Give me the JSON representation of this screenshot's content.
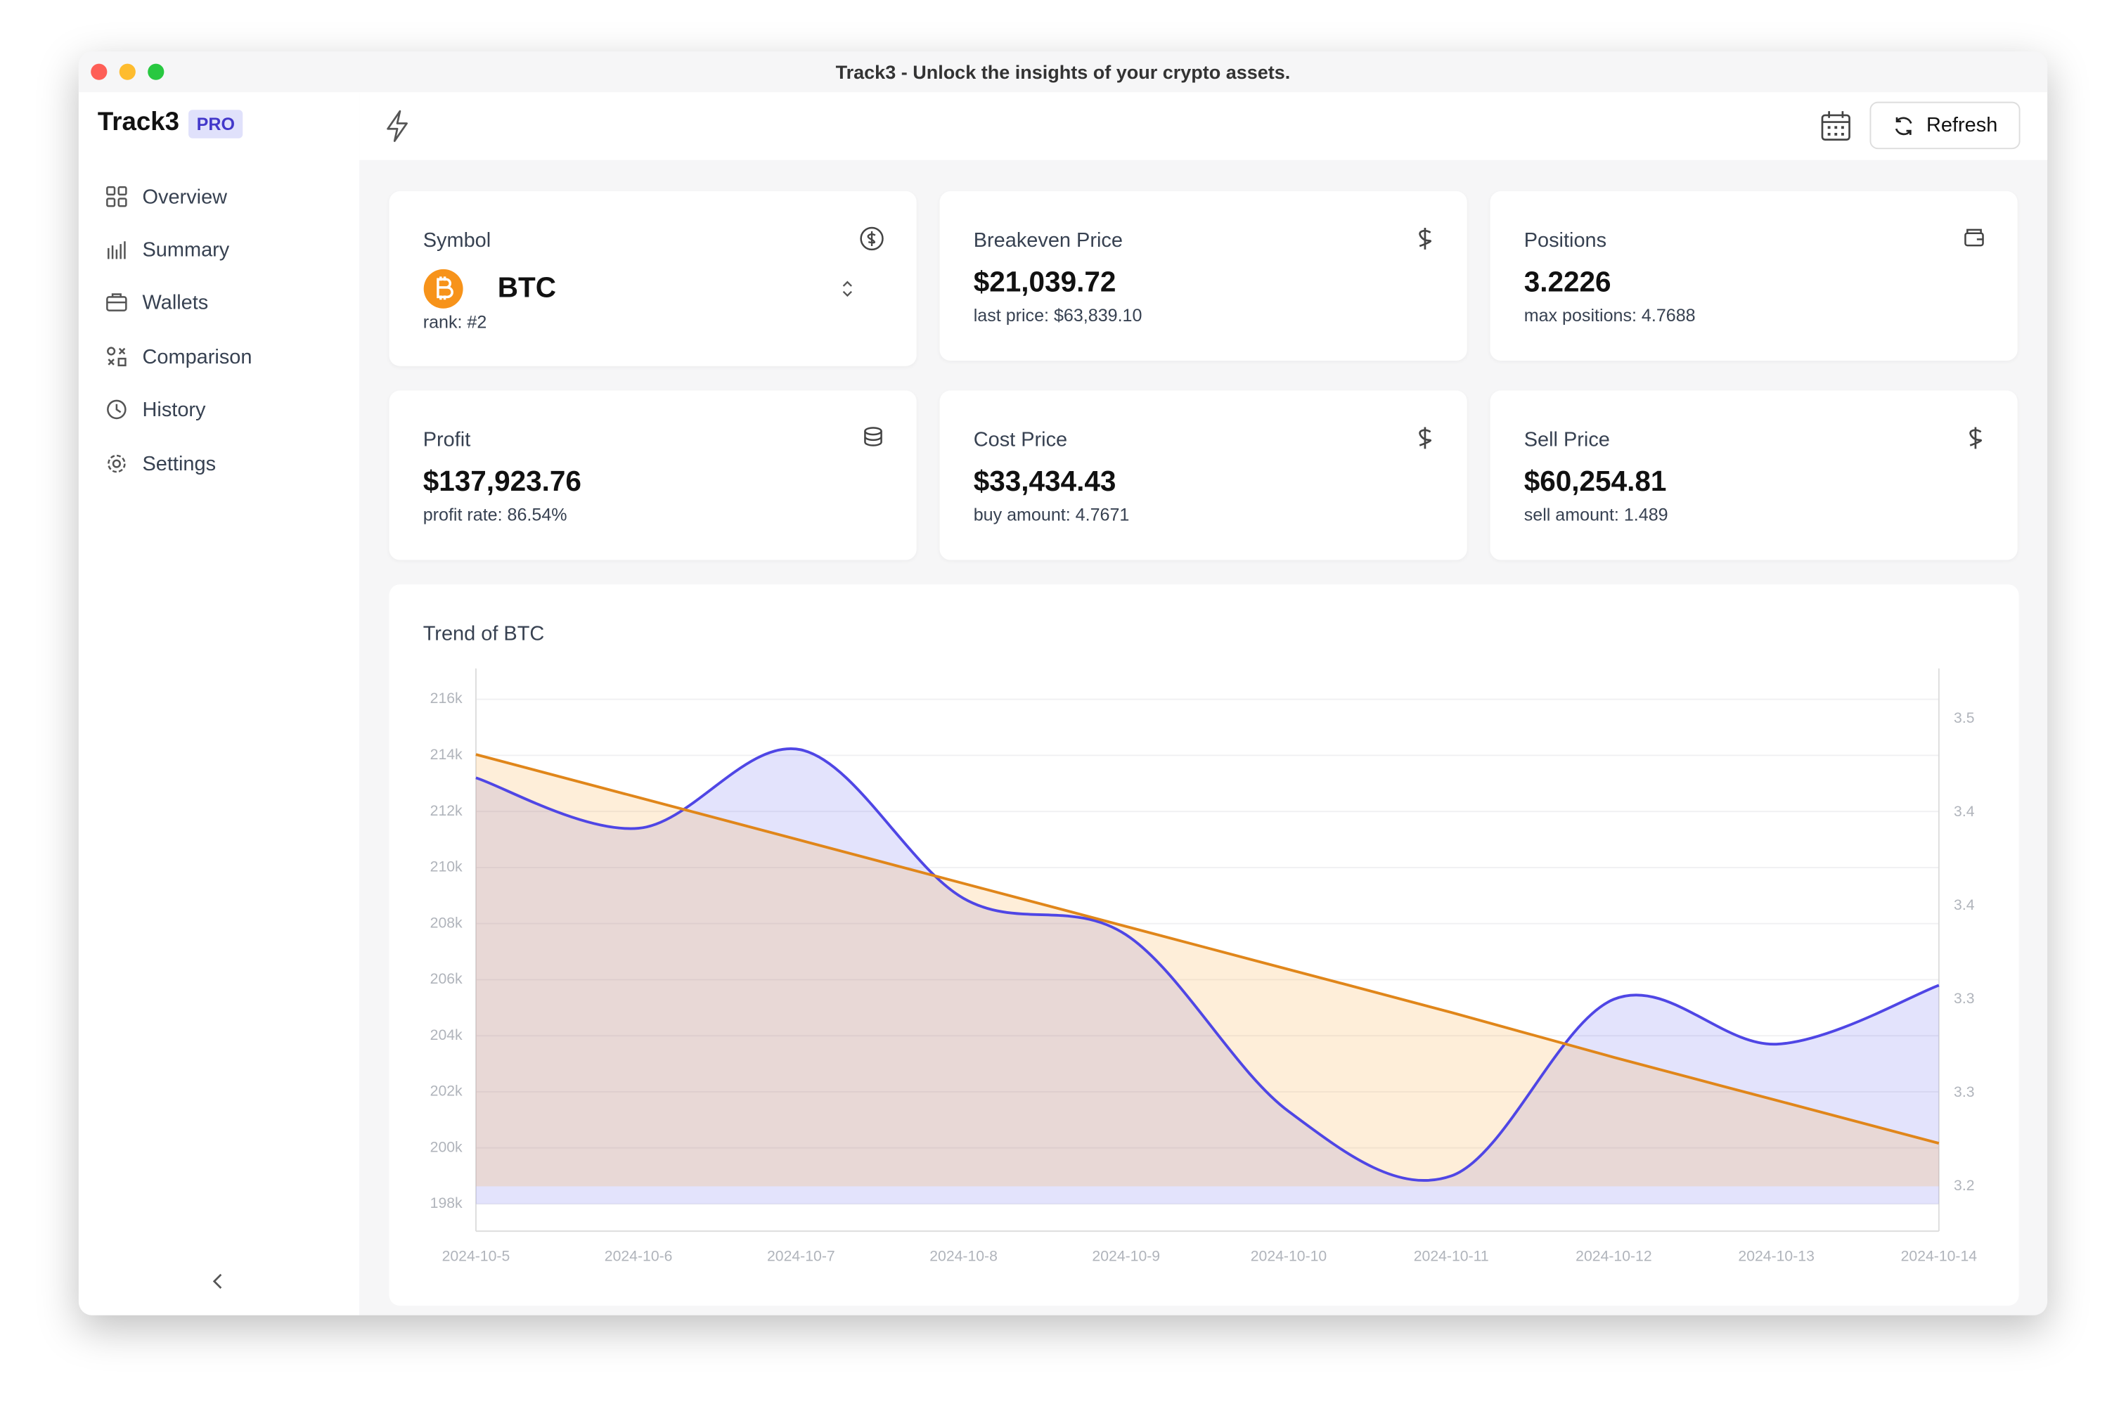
{
  "window_title": "Track3 - Unlock the insights of your crypto assets.",
  "sidebar": {
    "brand": "Track3",
    "badge": "PRO",
    "nav": [
      "Overview",
      "Summary",
      "Wallets",
      "Comparison",
      "History",
      "Settings"
    ]
  },
  "toolbar": {
    "refresh": "Refresh"
  },
  "cards": [
    {
      "label": "Symbol",
      "value": "BTC",
      "sub": "rank: #2"
    },
    {
      "label": "Breakeven Price",
      "value": "$21,039.72",
      "sub": "last price: $63,839.10"
    },
    {
      "label": "Positions",
      "value": "3.2226",
      "sub": "max positions: 4.7688"
    },
    {
      "label": "Profit",
      "value": "$137,923.76",
      "sub": "profit rate: 86.54%"
    },
    {
      "label": "Cost Price",
      "value": "$33,434.43",
      "sub": "buy amount: 4.7671"
    },
    {
      "label": "Sell Price",
      "value": "$60,254.81",
      "sub": "sell amount: 1.489"
    }
  ],
  "chart_data": {
    "type": "line",
    "title": "Trend of BTC",
    "categories": [
      "2024-10-5",
      "2024-10-6",
      "2024-10-7",
      "2024-10-8",
      "2024-10-9",
      "2024-10-10",
      "2024-10-11",
      "2024-10-12",
      "2024-10-13",
      "2024-10-14"
    ],
    "series": [
      {
        "color": "#4f46e5",
        "values": [
          213200,
          211400,
          214200,
          208900,
          207600,
          201300,
          199000,
          205300,
          203700,
          205800
        ]
      },
      {
        "color": "#e0861a",
        "axis": "y2",
        "values": [
          3.431,
          3.408,
          3.385,
          3.362,
          3.339,
          3.316,
          3.293,
          3.269,
          3.246,
          3.223
        ]
      }
    ],
    "ylim": [
      197030,
      217100
    ],
    "yticks": [
      {
        "value": 198000,
        "label": "198k"
      },
      {
        "value": 200000,
        "label": "200k"
      },
      {
        "value": 202000,
        "label": "202k"
      },
      {
        "value": 204000,
        "label": "204k"
      },
      {
        "value": 206000,
        "label": "206k"
      },
      {
        "value": 208000,
        "label": "208k"
      },
      {
        "value": 210000,
        "label": "210k"
      },
      {
        "value": 212000,
        "label": "212k"
      },
      {
        "value": 214000,
        "label": "214k"
      },
      {
        "value": 216000,
        "label": "216k"
      }
    ],
    "y2lim": [
      3.176,
      3.477
    ],
    "y2ticks": [
      3.2,
      {
        "value": 3.25,
        "label": "3.3"
      },
      3.3,
      {
        "value": 3.35,
        "label": "3.4"
      },
      3.4,
      {
        "value": 3.45,
        "label": "3.5"
      }
    ],
    "grid": true,
    "area": true
  }
}
